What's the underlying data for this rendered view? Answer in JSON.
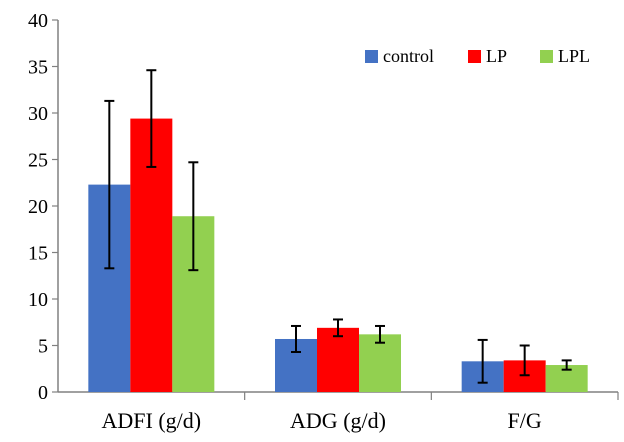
{
  "chart_data": {
    "type": "bar",
    "title": "",
    "xlabel": "",
    "ylabel": "",
    "ylim": [
      0,
      40
    ],
    "yticks": [
      0,
      5,
      10,
      15,
      20,
      25,
      30,
      35,
      40
    ],
    "categories": [
      "ADFI (g/d)",
      "ADG (g/d)",
      "F/G"
    ],
    "series": [
      {
        "name": "control",
        "color": "#4472C4",
        "values": [
          22.3,
          5.7,
          3.3
        ],
        "errors": [
          9.0,
          1.4,
          2.3
        ]
      },
      {
        "name": "LP",
        "color": "#FF0000",
        "values": [
          29.4,
          6.9,
          3.4
        ],
        "errors": [
          5.2,
          0.9,
          1.6
        ]
      },
      {
        "name": "LPL",
        "color": "#92D050",
        "values": [
          18.9,
          6.2,
          2.9
        ],
        "errors": [
          5.8,
          0.9,
          0.5
        ]
      }
    ],
    "legend_position": "top-right",
    "grid": false
  }
}
